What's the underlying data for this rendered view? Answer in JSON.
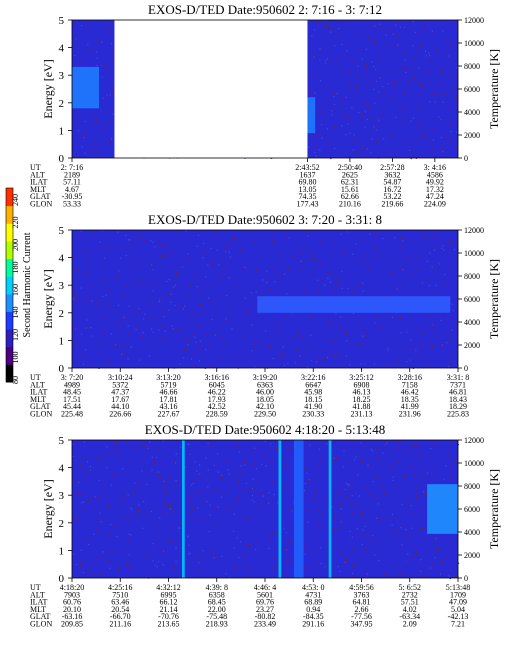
{
  "colorbar": {
    "label": "Second Harmonic Current",
    "ticks": [
      "80",
      "100",
      "120",
      "140",
      "160",
      "180",
      "200",
      "220",
      "240"
    ],
    "colors": [
      "#000000",
      "#4b0082",
      "#2f1fbf",
      "#1e3cff",
      "#1e90ff",
      "#00d0ff",
      "#00ff9a",
      "#b0ff00",
      "#ffff00",
      "#ffb000",
      "#ff3000"
    ]
  },
  "panel_labels": {
    "ylabel": "Energy [eV]",
    "y2label": "Temperature [K]",
    "row_labels": [
      "UT",
      "ALT",
      "ILAT",
      "MLT",
      "GLAT",
      "GLON"
    ]
  },
  "chart_data": [
    {
      "type": "heatmap",
      "title": "EXOS-D/TED   Date:950602  2: 7:16 - 3: 7:12",
      "xlabel": "",
      "ylabel": "Energy [eV]",
      "y2label": "Temperature [K]",
      "ylim": [
        0,
        5
      ],
      "y2lim": [
        0,
        12000
      ],
      "yticks": [
        "0",
        "1",
        "2",
        "3",
        "4",
        "5"
      ],
      "y2ticks": [
        "0",
        "2000",
        "4000",
        "6000",
        "8000",
        "10000",
        "12000"
      ],
      "data_gap": [
        0.11,
        0.61
      ],
      "columns": [
        {
          "UT": "2: 7:16",
          "ALT": "2189",
          "ILAT": "57.11",
          "MLT": "4.67",
          "GLAT": "-30.95",
          "GLON": "53.33"
        },
        {
          "UT": "2:43:52",
          "ALT": "1637",
          "ILAT": "69.80",
          "MLT": "13.05",
          "GLAT": "74.35",
          "GLON": "177.43"
        },
        {
          "UT": "2:50:40",
          "ALT": "2625",
          "ILAT": "62.31",
          "MLT": "15.61",
          "GLAT": "62.66",
          "GLON": "210.16"
        },
        {
          "UT": "2:57:28",
          "ALT": "3632",
          "ILAT": "54.87",
          "MLT": "16.72",
          "GLAT": "53.22",
          "GLON": "219.66"
        },
        {
          "UT": "3: 4:16",
          "ALT": "4586",
          "ILAT": "49.92",
          "MLT": "17.32",
          "GLAT": "47.24",
          "GLON": "224.09"
        }
      ],
      "column_positions": [
        0.0,
        0.61,
        0.72,
        0.83,
        0.94
      ],
      "features": [
        {
          "x": [
            0.0,
            0.07
          ],
          "energy": [
            1.8,
            3.3
          ],
          "color": "#1e7bff"
        },
        {
          "x": [
            0.61,
            0.63
          ],
          "energy": [
            0.9,
            2.2
          ],
          "color": "#1e7bff"
        }
      ]
    },
    {
      "type": "heatmap",
      "title": "EXOS-D/TED   Date:950602  3: 7:20 - 3:31: 8",
      "xlabel": "",
      "ylabel": "Energy [eV]",
      "y2label": "Temperature [K]",
      "ylim": [
        0,
        5
      ],
      "y2lim": [
        0,
        12000
      ],
      "yticks": [
        "0",
        "1",
        "2",
        "3",
        "4",
        "5"
      ],
      "y2ticks": [
        "0",
        "2000",
        "4000",
        "6000",
        "8000",
        "10000",
        "12000"
      ],
      "columns": [
        {
          "UT": "3: 7:20",
          "ALT": "4989",
          "ILAT": "48.45",
          "MLT": "17.51",
          "GLAT": "45.44",
          "GLON": "225.48"
        },
        {
          "UT": "3:10:24",
          "ALT": "5372",
          "ILAT": "47.37",
          "MLT": "17.67",
          "GLAT": "44.10",
          "GLON": "226.66"
        },
        {
          "UT": "3:13:20",
          "ALT": "5719",
          "ILAT": "46.66",
          "MLT": "17.81",
          "GLAT": "43.16",
          "GLON": "227.67"
        },
        {
          "UT": "3:16:16",
          "ALT": "6045",
          "ILAT": "46.22",
          "MLT": "17.93",
          "GLAT": "42.52",
          "GLON": "228.59"
        },
        {
          "UT": "3:19:20",
          "ALT": "6363",
          "ILAT": "46.00",
          "MLT": "18.05",
          "GLAT": "42.10",
          "GLON": "229.50"
        },
        {
          "UT": "3:22:16",
          "ALT": "6647",
          "ILAT": "45.98",
          "MLT": "18.15",
          "GLAT": "41.90",
          "GLON": "230.33"
        },
        {
          "UT": "3:25:12",
          "ALT": "6908",
          "ILAT": "46.13",
          "MLT": "18.25",
          "GLAT": "41.88",
          "GLON": "231.13"
        },
        {
          "UT": "3:28:16",
          "ALT": "7158",
          "ILAT": "46.42",
          "MLT": "18.35",
          "GLAT": "41.99",
          "GLON": "231.96"
        },
        {
          "UT": "3:31: 8",
          "ALT": "7371",
          "ILAT": "46.81",
          "MLT": "18.43",
          "GLAT": "18.29",
          "GLON": "225.83"
        }
      ],
      "column_positions": [
        0.0,
        0.125,
        0.25,
        0.375,
        0.5,
        0.625,
        0.75,
        0.875,
        1.0
      ],
      "features": [
        {
          "x": [
            0.48,
            0.98
          ],
          "energy": [
            2.0,
            2.6
          ],
          "color": "#2e5cff"
        }
      ]
    },
    {
      "type": "heatmap",
      "title": "EXOS-D/TED   Date:950602  4:18:20 - 5:13:48",
      "xlabel": "",
      "ylabel": "Energy [eV]",
      "y2label": "Temperature [K]",
      "ylim": [
        0,
        5
      ],
      "y2lim": [
        0,
        12000
      ],
      "yticks": [
        "0",
        "1",
        "2",
        "3",
        "4",
        "5"
      ],
      "y2ticks": [
        "0",
        "2000",
        "4000",
        "6000",
        "8000",
        "10000",
        "12000"
      ],
      "columns": [
        {
          "UT": "4:18:20",
          "ALT": "7903",
          "ILAT": "60.76",
          "MLT": "20.10",
          "GLAT": "-63.16",
          "GLON": "209.85"
        },
        {
          "UT": "4:25:16",
          "ALT": "7510",
          "ILAT": "63.46",
          "MLT": "20.54",
          "GLAT": "-66.70",
          "GLON": "211.16"
        },
        {
          "UT": "4:32:12",
          "ALT": "6995",
          "ILAT": "66.12",
          "MLT": "21.14",
          "GLAT": "-70.76",
          "GLON": "213.65"
        },
        {
          "UT": "4:39: 8",
          "ALT": "6358",
          "ILAT": "68.45",
          "MLT": "22.00",
          "GLAT": "-75.48",
          "GLON": "218.93"
        },
        {
          "UT": "4:46: 4",
          "ALT": "5601",
          "ILAT": "69.76",
          "MLT": "23.27",
          "GLAT": "-80.82",
          "GLON": "233.49"
        },
        {
          "UT": "4:53: 0",
          "ALT": "4731",
          "ILAT": "68.89",
          "MLT": "0.94",
          "GLAT": "-84.35",
          "GLON": "291.16"
        },
        {
          "UT": "4:59:56",
          "ALT": "3763",
          "ILAT": "64.81",
          "MLT": "2.66",
          "GLAT": "-77.56",
          "GLON": "347.95"
        },
        {
          "UT": "5: 6:52",
          "ALT": "2732",
          "ILAT": "57.51",
          "MLT": "4.02",
          "GLAT": "-63.34",
          "GLON": "2.09"
        },
        {
          "UT": "5:13:48",
          "ALT": "1709",
          "ILAT": "47.09",
          "MLT": "5.04",
          "GLAT": "-42.13",
          "GLON": "7.21"
        }
      ],
      "column_positions": [
        0.0,
        0.125,
        0.25,
        0.375,
        0.5,
        0.625,
        0.75,
        0.875,
        1.0
      ],
      "features": [
        {
          "x": [
            0.285,
            0.292
          ],
          "energy": [
            0,
            5
          ],
          "color": "#00c8ff"
        },
        {
          "x": [
            0.535,
            0.542
          ],
          "energy": [
            0,
            5
          ],
          "color": "#00c8ff"
        },
        {
          "x": [
            0.575,
            0.6
          ],
          "energy": [
            0,
            5
          ],
          "color": "#2060ff"
        },
        {
          "x": [
            0.665,
            0.672
          ],
          "energy": [
            0,
            5
          ],
          "color": "#00c8ff"
        },
        {
          "x": [
            0.92,
            1.0
          ],
          "energy": [
            1.6,
            3.4
          ],
          "color": "#1e90ff"
        }
      ]
    }
  ]
}
